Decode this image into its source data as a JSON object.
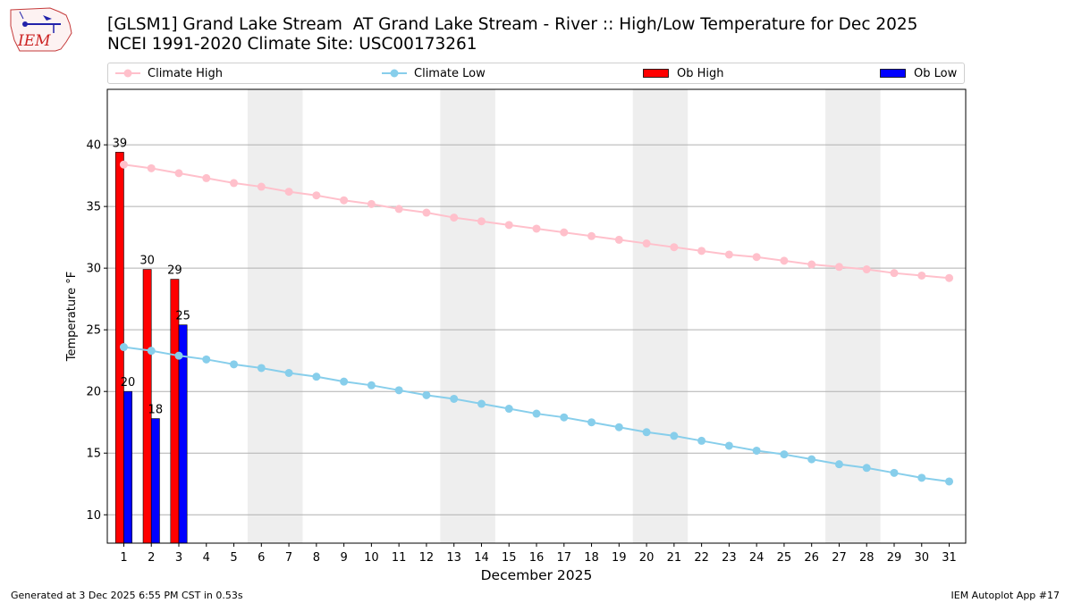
{
  "logo": {
    "text": "IEM"
  },
  "title": {
    "line1": "[GLSM1] Grand Lake Stream  AT Grand Lake Stream - River :: High/Low Temperature for Dec 2025",
    "line2": "NCEI 1991-2020 Climate Site: USC00173261"
  },
  "footer": {
    "left": "Generated at 3 Dec 2025 6:55 PM CST in 0.53s",
    "right": "IEM Autoplot App #17"
  },
  "colors": {
    "climate_high": "#ffc0cb",
    "climate_low": "#87ceeb",
    "ob_high": "#ff0000",
    "ob_low": "#0000ff",
    "weekend_band": "#eeeeee",
    "grid": "#b0b0b0"
  },
  "chart_data": {
    "type": "bar",
    "xlabel": "December 2025",
    "ylabel": "Temperature °F",
    "ylim": [
      7.7,
      44.5
    ],
    "xlim": [
      0.4,
      31.6
    ],
    "yticks": [
      10,
      15,
      20,
      25,
      30,
      35,
      40
    ],
    "grid": "horizontal",
    "legend_placement": "top",
    "days": [
      1,
      2,
      3,
      4,
      5,
      6,
      7,
      8,
      9,
      10,
      11,
      12,
      13,
      14,
      15,
      16,
      17,
      18,
      19,
      20,
      21,
      22,
      23,
      24,
      25,
      26,
      27,
      28,
      29,
      30,
      31
    ],
    "weekend_bands": [
      [
        5.5,
        7.5
      ],
      [
        12.5,
        14.5
      ],
      [
        19.5,
        21.5
      ],
      [
        26.5,
        28.5
      ]
    ],
    "series": [
      {
        "name": "Climate High",
        "kind": "line",
        "values": [
          38.4,
          38.1,
          37.7,
          37.3,
          36.9,
          36.6,
          36.2,
          35.9,
          35.5,
          35.2,
          34.8,
          34.5,
          34.1,
          33.8,
          33.5,
          33.2,
          32.9,
          32.6,
          32.3,
          32.0,
          31.7,
          31.4,
          31.1,
          30.9,
          30.6,
          30.3,
          30.1,
          29.9,
          29.6,
          29.4,
          29.2
        ]
      },
      {
        "name": "Climate Low",
        "kind": "line",
        "values": [
          23.6,
          23.3,
          22.9,
          22.6,
          22.2,
          21.9,
          21.5,
          21.2,
          20.8,
          20.5,
          20.1,
          19.7,
          19.4,
          19.0,
          18.6,
          18.2,
          17.9,
          17.5,
          17.1,
          16.7,
          16.4,
          16.0,
          15.6,
          15.2,
          14.9,
          14.5,
          14.1,
          13.8,
          13.4,
          13.0,
          12.7
        ]
      },
      {
        "name": "Ob High",
        "kind": "bar",
        "days": [
          1,
          2,
          3
        ],
        "values": [
          39.4,
          29.9,
          29.1
        ],
        "labels": [
          "39",
          "30",
          "29"
        ]
      },
      {
        "name": "Ob Low",
        "kind": "bar",
        "days": [
          1,
          2,
          3
        ],
        "values": [
          20.0,
          17.8,
          25.4
        ],
        "labels": [
          "20",
          "18",
          "25"
        ]
      }
    ]
  }
}
